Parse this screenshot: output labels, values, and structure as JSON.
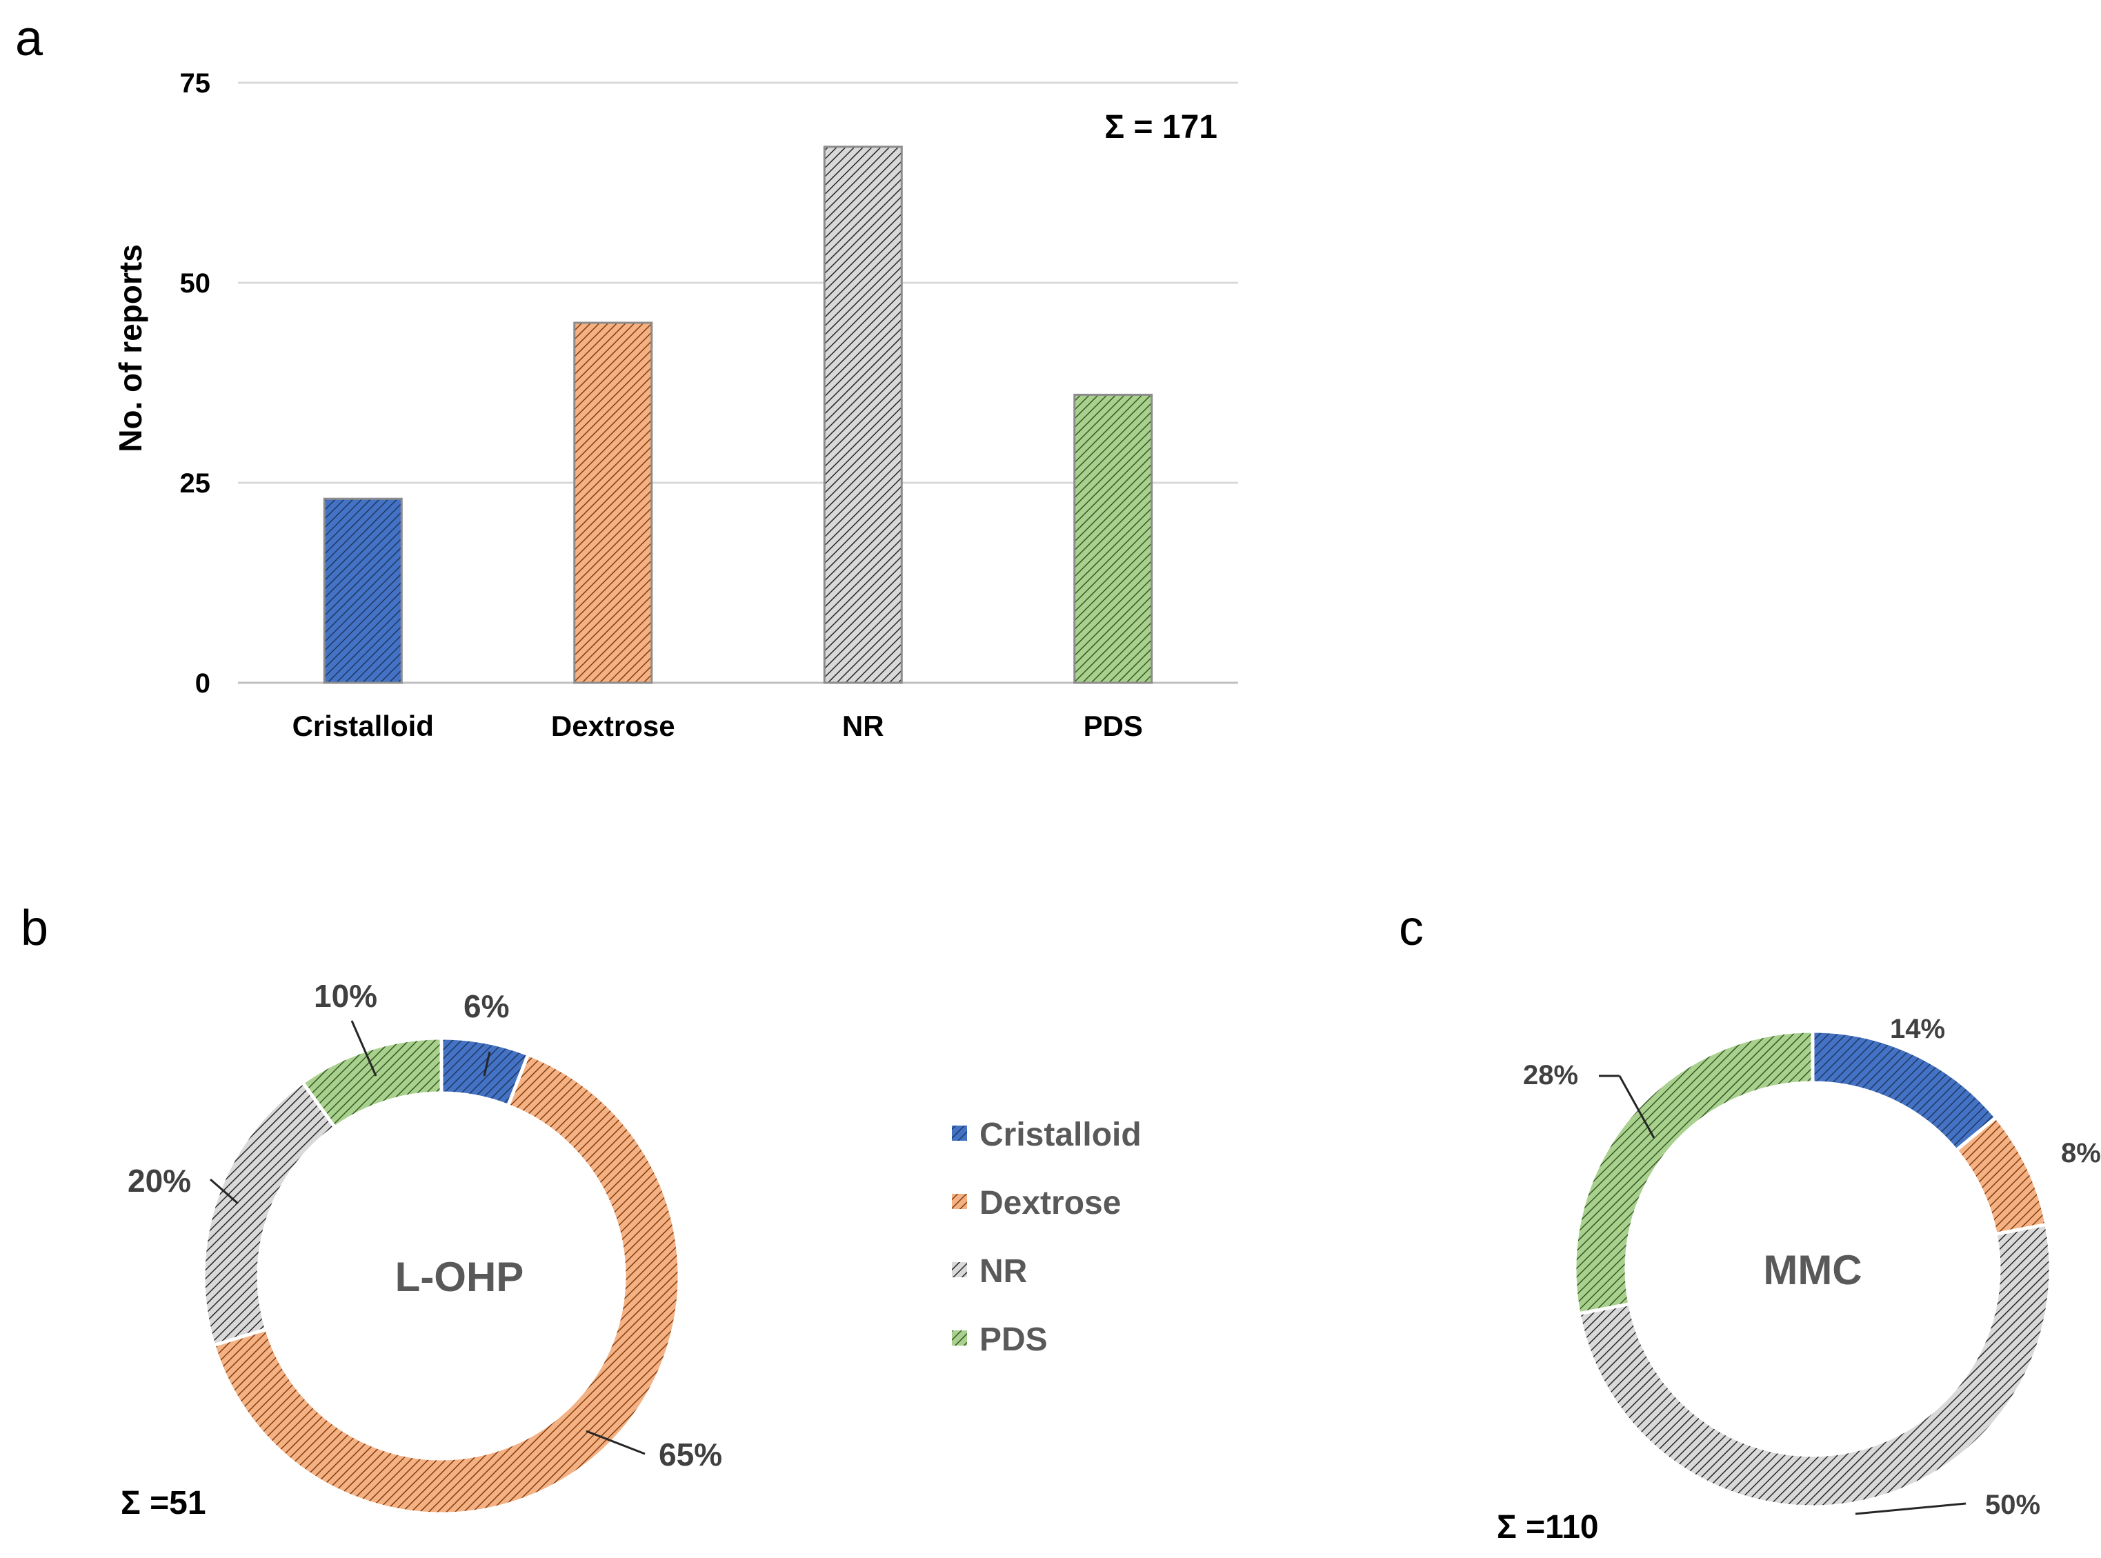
{
  "colors": {
    "Cristalloid": "#4472C4",
    "Dextrose": "#ED7D31",
    "NR": "#808080",
    "PDS": "#70AD47",
    "grid": "#D9D9D9"
  },
  "chart_data": [
    {
      "type": "bar",
      "panel": "a",
      "title": "",
      "xlabel": "",
      "ylabel": "No. of reports",
      "categories": [
        "Cristalloid",
        "Dextrose",
        "NR",
        "PDS"
      ],
      "values": [
        23,
        45,
        67,
        36
      ],
      "ylim": [
        0,
        75
      ],
      "yticks": [
        "0",
        "25",
        "50",
        "75"
      ],
      "grid": true,
      "annotation": "Σ = 171"
    },
    {
      "type": "pie",
      "panel": "b",
      "center_label": "L-OHP",
      "total": "Σ =51",
      "categories": [
        "Cristalloid",
        "Dextrose",
        "NR",
        "PDS"
      ],
      "values": [
        6,
        65,
        20,
        10
      ],
      "labels": [
        "6%",
        "65%",
        "20%",
        "10%"
      ]
    },
    {
      "type": "pie",
      "panel": "c",
      "center_label": "MMC",
      "total": "Σ =110",
      "categories": [
        "Cristalloid",
        "Dextrose",
        "NR",
        "PDS"
      ],
      "values": [
        14,
        8,
        50,
        28
      ],
      "labels": [
        "14%",
        "8%",
        "50%",
        "28%"
      ]
    }
  ],
  "legend": {
    "items": [
      "Cristalloid",
      "Dextrose",
      "NR",
      "PDS"
    ]
  }
}
